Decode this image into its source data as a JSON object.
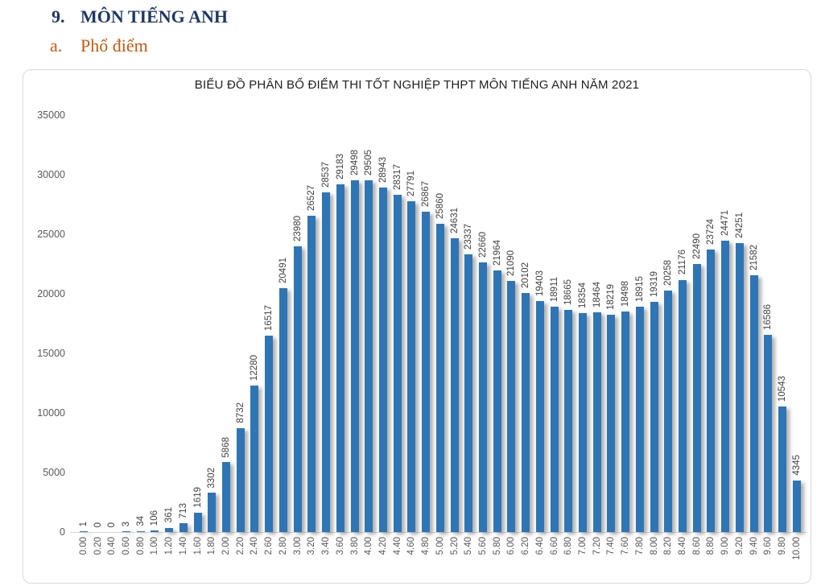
{
  "page": {
    "section_heading": {
      "number": "9.",
      "title": "MÔN TIẾNG ANH"
    },
    "sub_heading": {
      "letter": "a.",
      "title": "Phổ điểm"
    }
  },
  "chart_data": {
    "type": "bar",
    "title": "BIỂU ĐỒ PHÂN BỐ ĐIỂM THI TỐT NGHIỆP THPT MÔN TIẾNG ANH NĂM 2021",
    "xlabel": "",
    "ylabel": "",
    "ylim": [
      0,
      35000
    ],
    "y_ticks": [
      0,
      5000,
      10000,
      15000,
      20000,
      25000,
      30000,
      35000
    ],
    "grid": false,
    "legend": false,
    "data_labels_rotation_deg": 90,
    "x_tick_rotation_deg": 90,
    "bar_color": "#2E75B6",
    "categories": [
      "0.00",
      "0.20",
      "0.40",
      "0.60",
      "0.80",
      "1.00",
      "1.20",
      "1.40",
      "1.60",
      "1.80",
      "2.00",
      "2.20",
      "2.40",
      "2.60",
      "2.80",
      "3.00",
      "3.20",
      "3.40",
      "3.60",
      "3.80",
      "4.00",
      "4.20",
      "4.40",
      "4.60",
      "4.80",
      "5.00",
      "5.20",
      "5.40",
      "5.60",
      "5.80",
      "6.00",
      "6.20",
      "6.40",
      "6.60",
      "6.80",
      "7.00",
      "7.20",
      "7.40",
      "7.60",
      "7.80",
      "8.00",
      "8.20",
      "8.40",
      "8.60",
      "8.80",
      "9.00",
      "9.20",
      "9.40",
      "9.60",
      "9.80",
      "10.00"
    ],
    "values": [
      1,
      0,
      0,
      3,
      34,
      106,
      361,
      713,
      1619,
      3302,
      5868,
      8732,
      12280,
      16517,
      20491,
      23980,
      26527,
      28537,
      29183,
      29498,
      29505,
      28943,
      28317,
      27791,
      26867,
      25860,
      24631,
      23337,
      22660,
      21964,
      21090,
      20102,
      19403,
      18911,
      18665,
      18354,
      18464,
      18219,
      18498,
      18915,
      19319,
      20258,
      21176,
      22490,
      23724,
      24471,
      24251,
      21582,
      16586,
      10543,
      4345
    ]
  },
  "colors": {
    "heading_primary": "#1F3864",
    "heading_secondary": "#C45911",
    "bar": "#2E75B6",
    "axis_text": "#595959",
    "data_label_text": "#404040",
    "chart_border": "#D9D9D9"
  }
}
